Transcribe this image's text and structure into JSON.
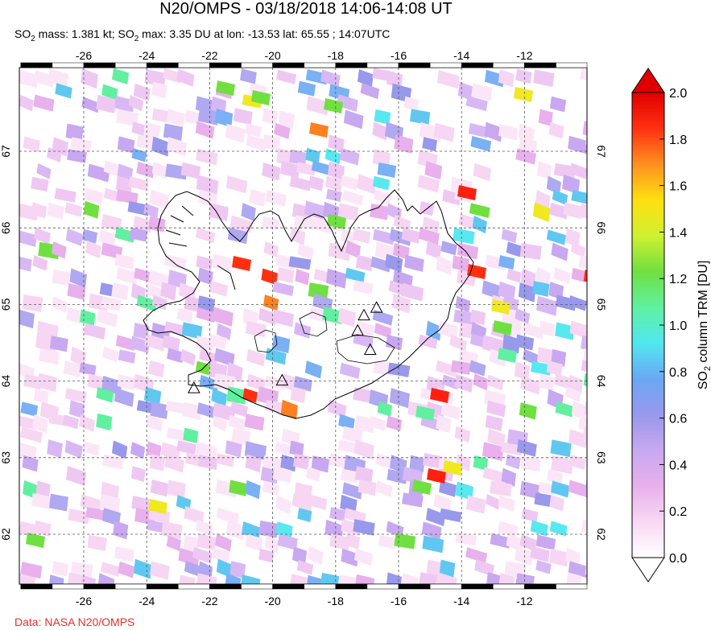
{
  "header": {
    "title": "N20/OMPS - 03/18/2018 14:06-14:08 UT",
    "subtitle": {
      "p1": "SO",
      "p1_sub": "2",
      "p2": " mass: 1.381 kt; SO",
      "p2_sub": "2",
      "p3": " max: 3.35 DU at lon: -13.53 lat: 65.55 ; 14:07UTC"
    }
  },
  "map": {
    "lon_range": [
      -28,
      -10
    ],
    "lat_range": [
      61.2,
      68.0
    ],
    "lon_ticks": [
      -26,
      -24,
      -22,
      -20,
      -18,
      -16,
      -14,
      -12
    ],
    "lat_ticks": [
      62,
      63,
      64,
      65,
      66,
      67
    ],
    "lon_tick_labels": [
      "-26",
      "-24",
      "-22",
      "-20",
      "-18",
      "-16",
      "-14",
      "-12"
    ],
    "lat_tick_labels": [
      "62",
      "63",
      "64",
      "65",
      "66",
      "67"
    ],
    "volcano_markers": [
      {
        "lon": -22.5,
        "lat": 63.9
      },
      {
        "lon": -19.7,
        "lat": 64.0
      },
      {
        "lon": -17.3,
        "lat": 64.65
      },
      {
        "lon": -17.1,
        "lat": 64.85
      },
      {
        "lon": -16.9,
        "lat": 64.4
      },
      {
        "lon": -16.7,
        "lat": 64.95
      }
    ]
  },
  "colorbar": {
    "label": "SO2 column TRM [DU]",
    "label_parts": {
      "a": "SO",
      "sub": "2",
      "b": " column TRM [DU]"
    },
    "min": 0.0,
    "max": 2.0,
    "ticks": [
      "0.0",
      "0.2",
      "0.4",
      "0.6",
      "0.8",
      "1.0",
      "1.2",
      "1.4",
      "1.6",
      "1.8",
      "2.0"
    ],
    "colors": [
      "#ffffff",
      "#f8d8f4",
      "#e8b0ec",
      "#c8a8f0",
      "#9898ec",
      "#6aa8f4",
      "#50e8f0",
      "#60f0a0",
      "#70e040",
      "#d0f030",
      "#ffe010",
      "#ff9020",
      "#ff3010",
      "#e00000"
    ]
  },
  "footer": {
    "credit": "Data: NASA N20/OMPS"
  }
}
